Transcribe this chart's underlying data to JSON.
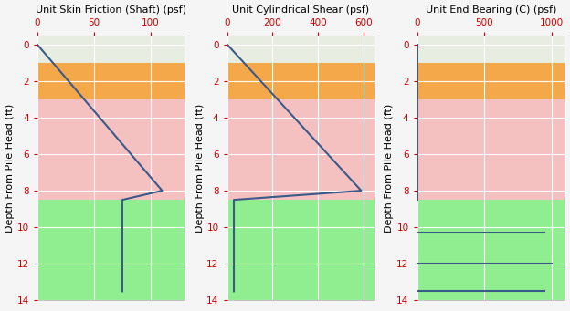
{
  "subplots": [
    {
      "title": "Unit Skin Friction (Shaft) (psf)",
      "xlim": [
        0,
        130
      ],
      "xticks": [
        0,
        50,
        100
      ],
      "lines": [
        {
          "x": [
            0,
            110,
            75,
            75
          ],
          "y": [
            0,
            8.0,
            8.5,
            13.5
          ]
        }
      ]
    },
    {
      "title": "Unit Cylindrical Shear (psf)",
      "xlim": [
        0,
        650
      ],
      "xticks": [
        0,
        200,
        400,
        600
      ],
      "lines": [
        {
          "x": [
            0,
            590,
            30,
            30
          ],
          "y": [
            0,
            8.0,
            8.5,
            13.5
          ]
        }
      ]
    },
    {
      "title": "Unit End Bearing (C) (psf)",
      "xlim": [
        0,
        1100
      ],
      "xticks": [
        0,
        500,
        1000
      ],
      "lines": [
        {
          "x": [
            0,
            0
          ],
          "y": [
            0,
            8.5
          ]
        },
        {
          "x": [
            0,
            950
          ],
          "y": [
            10.3,
            10.3
          ]
        },
        {
          "x": [
            0,
            1000
          ],
          "y": [
            12.0,
            12.0
          ]
        },
        {
          "x": [
            0,
            950
          ],
          "y": [
            13.5,
            13.5
          ]
        }
      ]
    }
  ],
  "ylim": [
    14,
    -0.5
  ],
  "yticks": [
    0,
    2,
    4,
    6,
    8,
    10,
    12,
    14
  ],
  "ylabel": "Depth From Pile Head (ft)",
  "layers": [
    {
      "ymin": -0.5,
      "ymax": 1.0,
      "color": "#e8ede2"
    },
    {
      "ymin": 1.0,
      "ymax": 3.0,
      "color": "#f5a84a"
    },
    {
      "ymin": 3.0,
      "ymax": 8.5,
      "color": "#f5c0c0"
    },
    {
      "ymin": 8.5,
      "ymax": 14.5,
      "color": "#90ee90"
    }
  ],
  "line_color": "#3a5a8a",
  "line_width": 1.5,
  "grid_color": "#ffffff",
  "tick_color": "#cc0000",
  "title_fontsize": 8.0,
  "tick_fontsize": 7.5,
  "label_fontsize": 8.0,
  "fig_facecolor": "#f5f5f5"
}
